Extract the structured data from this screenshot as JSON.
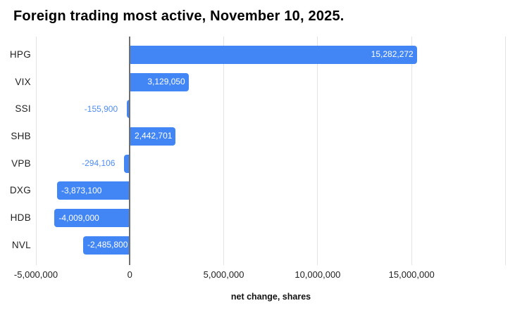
{
  "title": "Foreign trading most active, November 10, 2025.",
  "chart_data": {
    "type": "bar",
    "orientation": "horizontal",
    "title": "Foreign trading most active, November 10, 2025.",
    "xlabel": "net change, shares",
    "ylabel": "",
    "categories": [
      "HPG",
      "VIX",
      "SSI",
      "SHB",
      "VPB",
      "DXG",
      "HDB",
      "NVL"
    ],
    "values": [
      15282272,
      3129050,
      -155900,
      2442701,
      -294106,
      -3873100,
      -4009000,
      -2485800
    ],
    "value_labels": [
      "15,282,272",
      "3,129,050",
      "-155,900",
      "2,442,701",
      "-294,106",
      "-3,873,100",
      "-4,009,000",
      "-2,485,800"
    ],
    "xlim": [
      -5000000,
      20000000
    ],
    "xticks": [
      {
        "value": -5000000,
        "label": "-5,000,000"
      },
      {
        "value": 0,
        "label": "0"
      },
      {
        "value": 5000000,
        "label": "5,000,000"
      },
      {
        "value": 10000000,
        "label": "10,000,000"
      },
      {
        "value": 15000000,
        "label": "15,000,000"
      },
      {
        "value": 20000000,
        "label": ""
      }
    ],
    "grid": true,
    "legend": "none",
    "colors": {
      "bar": "#4285f4",
      "inside_label": "#ffffff",
      "outside_label": "#4e8df5",
      "gridline": "#e3e3e3",
      "zero_line": "#6f6f6f",
      "tick_label": "#222222",
      "category_label": "#222222",
      "title": "#000000",
      "axis_title": "#111111",
      "background": "#ffffff"
    }
  }
}
